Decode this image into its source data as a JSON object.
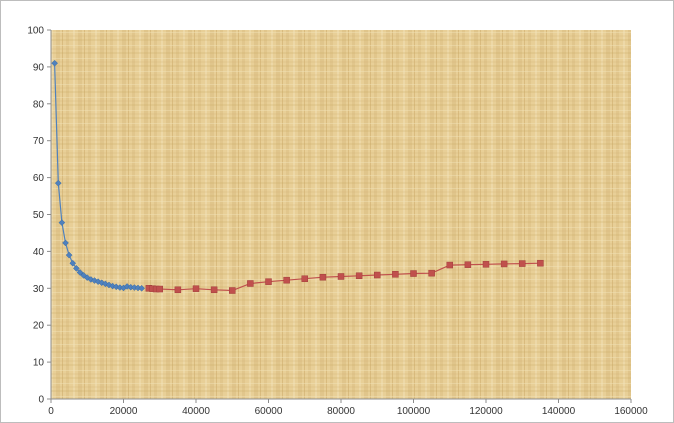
{
  "chart_data": {
    "type": "line",
    "title": "",
    "xlabel": "",
    "ylabel": "",
    "xlim": [
      0,
      160000
    ],
    "ylim": [
      0,
      100
    ],
    "x_ticks": [
      0,
      20000,
      40000,
      60000,
      80000,
      100000,
      120000,
      140000,
      160000
    ],
    "y_ticks": [
      0,
      10,
      20,
      30,
      40,
      50,
      60,
      70,
      80,
      90,
      100
    ],
    "grid": false,
    "legend": "none",
    "plot_background": "parchment",
    "series": [
      {
        "color": "#4f81bd",
        "marker": "diamond",
        "points": [
          [
            1000,
            91
          ],
          [
            2000,
            58.5
          ],
          [
            3000,
            47.8
          ],
          [
            4000,
            42.3
          ],
          [
            5000,
            39
          ],
          [
            6000,
            36.8
          ],
          [
            7000,
            35.4
          ],
          [
            8000,
            34.3
          ],
          [
            9000,
            33.5
          ],
          [
            10000,
            32.9
          ],
          [
            11000,
            32.4
          ],
          [
            12000,
            32.1
          ],
          [
            13000,
            31.8
          ],
          [
            14000,
            31.5
          ],
          [
            15000,
            31.2
          ],
          [
            16000,
            30.9
          ],
          [
            17000,
            30.6
          ],
          [
            18000,
            30.4
          ],
          [
            19000,
            30.2
          ],
          [
            20000,
            30.1
          ],
          [
            21000,
            30.5
          ],
          [
            22000,
            30.3
          ],
          [
            23000,
            30.2
          ],
          [
            24000,
            30.1
          ],
          [
            25000,
            30.0
          ]
        ]
      },
      {
        "color": "#c0504d",
        "marker": "square",
        "points": [
          [
            27000,
            30.0
          ],
          [
            28000,
            29.9
          ],
          [
            29000,
            29.8
          ],
          [
            30000,
            29.8
          ],
          [
            35000,
            29.6
          ],
          [
            40000,
            29.9
          ],
          [
            45000,
            29.6
          ],
          [
            50000,
            29.4
          ],
          [
            55000,
            31.3
          ],
          [
            60000,
            31.8
          ],
          [
            65000,
            32.2
          ],
          [
            70000,
            32.6
          ],
          [
            75000,
            33.0
          ],
          [
            80000,
            33.2
          ],
          [
            85000,
            33.4
          ],
          [
            90000,
            33.6
          ],
          [
            95000,
            33.8
          ],
          [
            100000,
            34.0
          ],
          [
            105000,
            34.1
          ],
          [
            110000,
            36.3
          ],
          [
            115000,
            36.4
          ],
          [
            120000,
            36.5
          ],
          [
            125000,
            36.6
          ],
          [
            130000,
            36.7
          ],
          [
            135000,
            36.8
          ]
        ]
      }
    ]
  }
}
